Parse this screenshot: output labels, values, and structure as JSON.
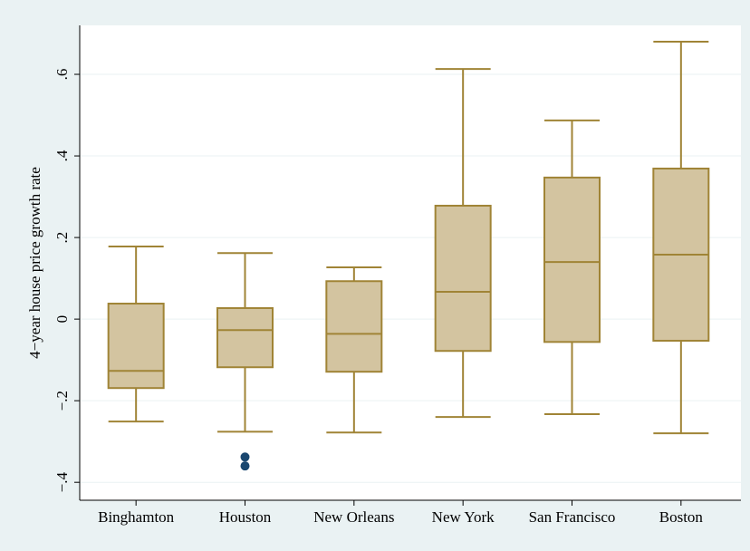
{
  "chart_data": {
    "type": "box",
    "y_label": "4−year house price growth rate",
    "categories": [
      "Binghamton",
      "Houston",
      "New Orleans",
      "New York",
      "San Francisco",
      "Boston"
    ],
    "boxes": [
      {
        "whisker_low": -0.251,
        "q1": -0.169,
        "median": -0.127,
        "q3": 0.038,
        "whisker_high": 0.178,
        "outliers": []
      },
      {
        "whisker_low": -0.276,
        "q1": -0.118,
        "median": -0.027,
        "q3": 0.027,
        "whisker_high": 0.162,
        "outliers": [
          -0.338,
          -0.36
        ]
      },
      {
        "whisker_low": -0.278,
        "q1": -0.129,
        "median": -0.036,
        "q3": 0.093,
        "whisker_high": 0.127,
        "outliers": []
      },
      {
        "whisker_low": -0.24,
        "q1": -0.078,
        "median": 0.067,
        "q3": 0.278,
        "whisker_high": 0.613,
        "outliers": []
      },
      {
        "whisker_low": -0.233,
        "q1": -0.056,
        "median": 0.14,
        "q3": 0.347,
        "whisker_high": 0.487,
        "outliers": []
      },
      {
        "whisker_low": -0.28,
        "q1": -0.053,
        "median": 0.158,
        "q3": 0.369,
        "whisker_high": 0.68,
        "outliers": []
      }
    ],
    "box_color": "#d3c4a0",
    "line_color": "#a08436",
    "outlier_color": "#1a476f",
    "ylim": [
      -0.444,
      0.72
    ],
    "yticks": [
      {
        "value": -0.4,
        "label": "−.4"
      },
      {
        "value": -0.2,
        "label": "−.2"
      },
      0,
      {
        "value": 0.2,
        "label": ".2"
      },
      {
        "value": 0.4,
        "label": ".4"
      },
      {
        "value": 0.6,
        "label": ".6"
      }
    ],
    "grid": true
  }
}
